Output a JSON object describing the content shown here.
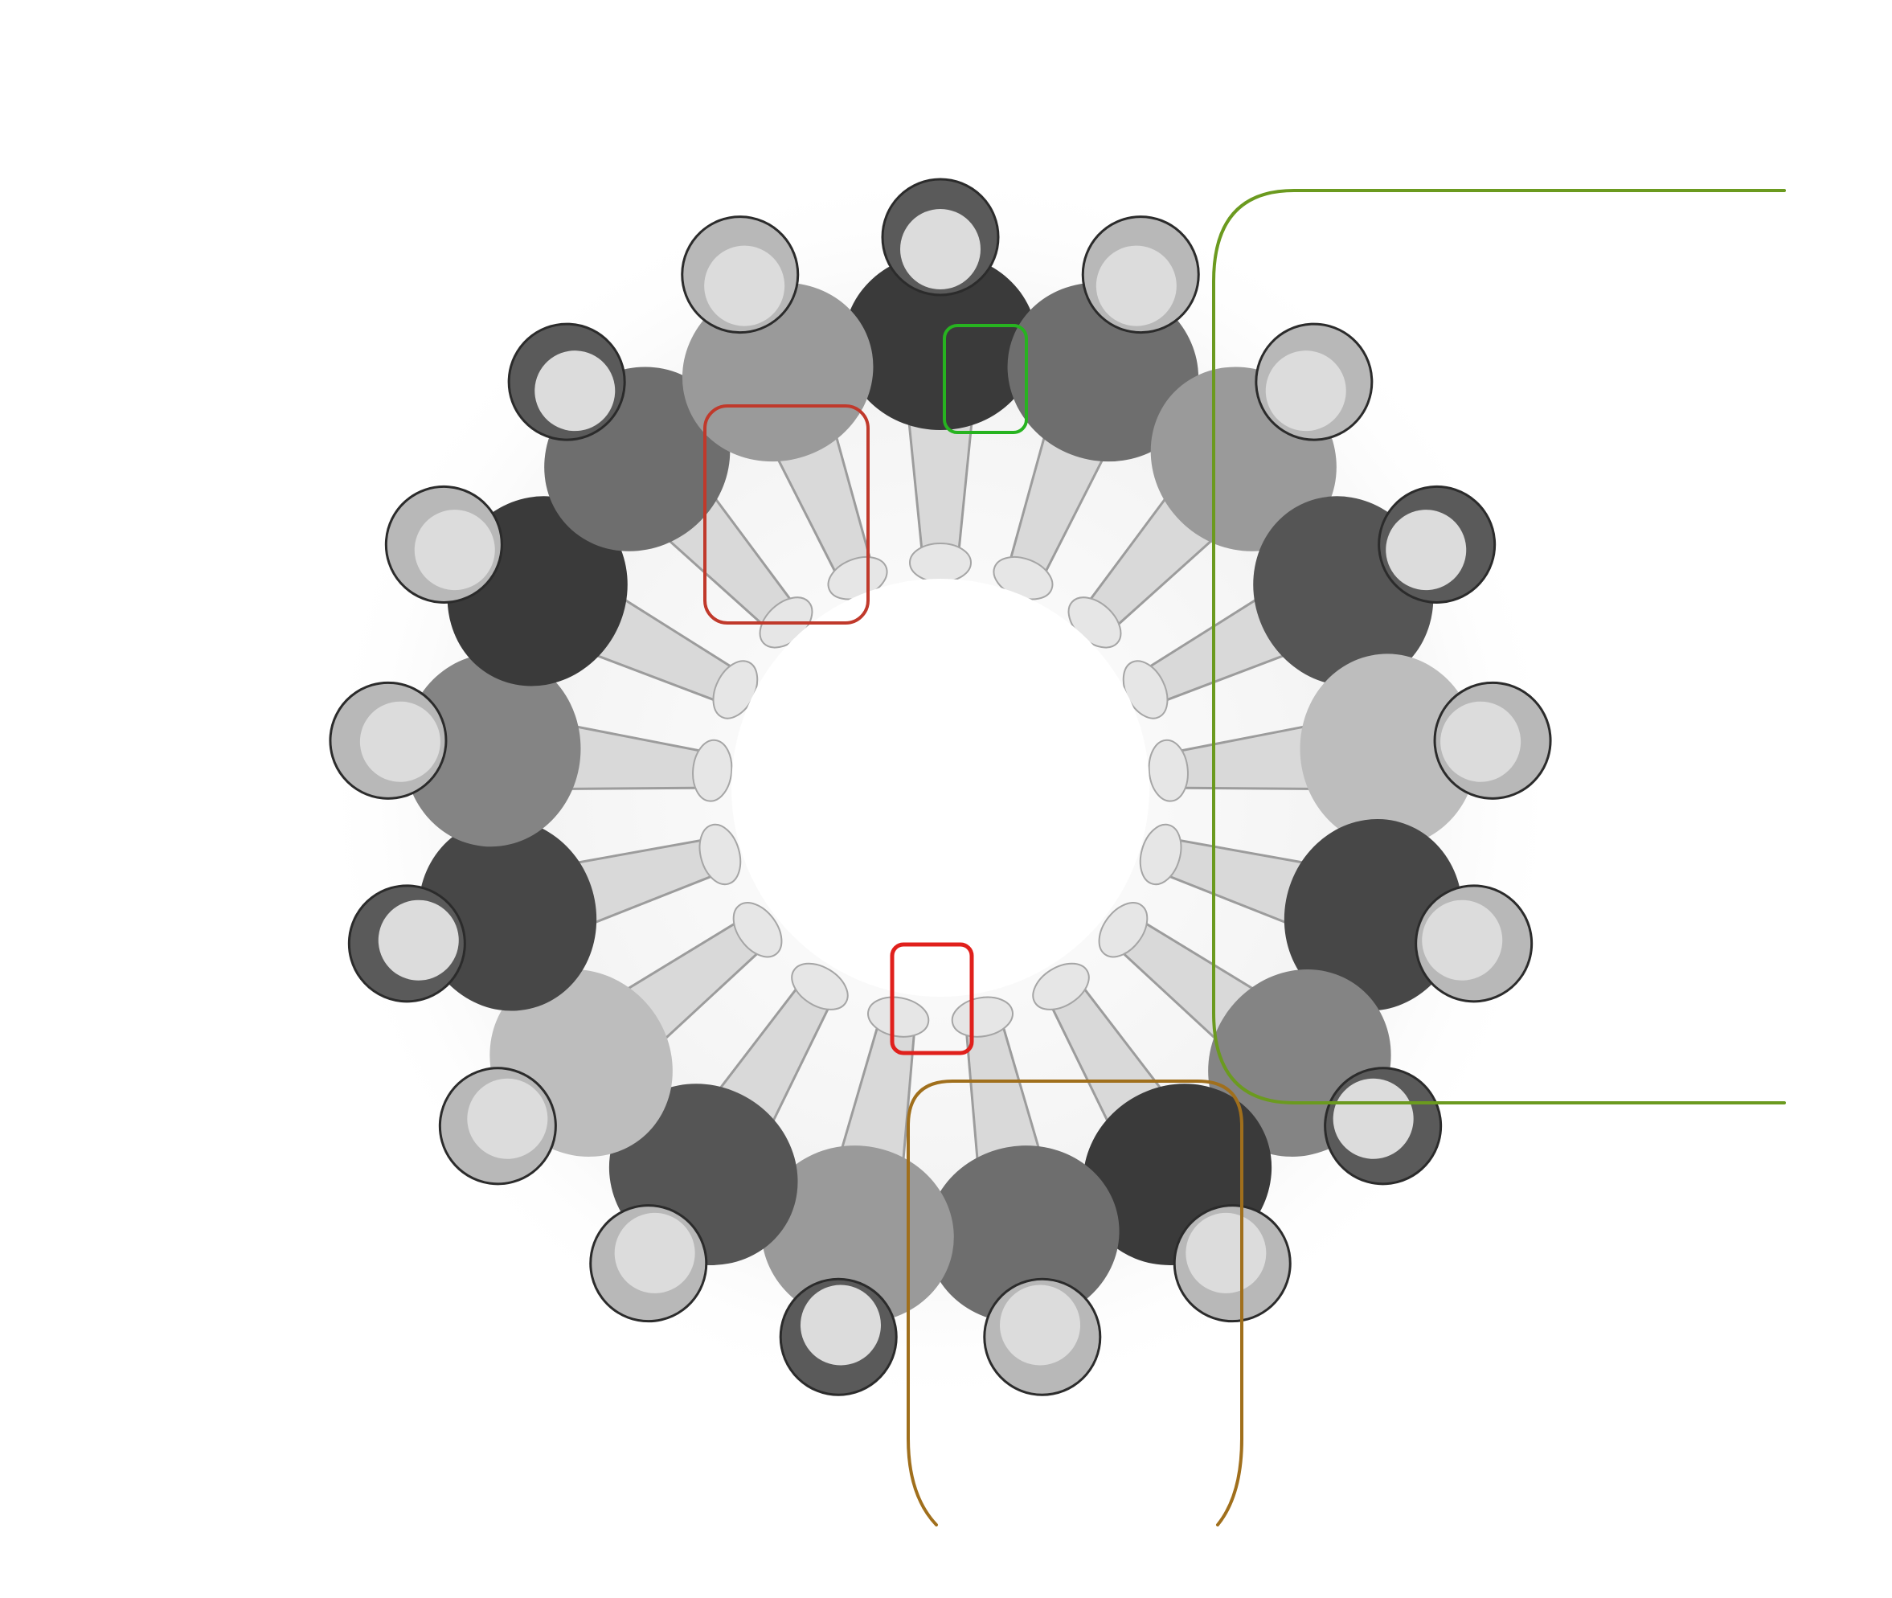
{
  "image": {
    "subject": "circle-of-people-joining-hands",
    "style": "grayscale-photo",
    "people_count": 17
  },
  "highlights": [
    {
      "id": "hands-center-left",
      "color": "#c0392b"
    },
    {
      "id": "shirt-top",
      "color": "#27b320"
    },
    {
      "id": "hands-bottom",
      "color": "#e0201c"
    },
    {
      "id": "people-bottom",
      "color": "#a06f1c"
    },
    {
      "id": "people-right-bracket",
      "color": "#6b9a1f"
    }
  ],
  "colors": {
    "background": "#ffffff",
    "photo_dark": "#2b2b2b",
    "photo_mid": "#7a7a7a",
    "photo_light": "#cfcfcf"
  }
}
